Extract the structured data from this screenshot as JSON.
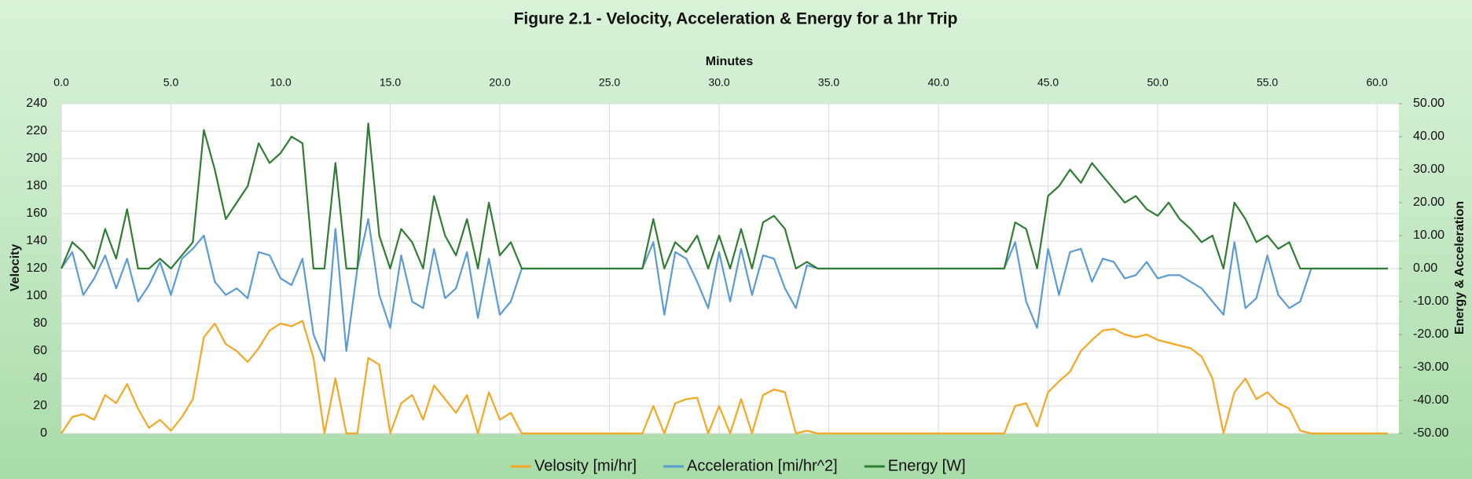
{
  "chart_data": {
    "type": "line",
    "title": "Figure 2.1 - Velocity, Acceleration & Energy for a 1hr Trip",
    "x_label": "Minutes",
    "y_label": "Velocity",
    "y2_label": "Energy & Acceleration",
    "x": [
      0,
      0.5,
      1,
      1.5,
      2,
      2.5,
      3,
      3.5,
      4,
      4.5,
      5,
      5.5,
      6,
      6.5,
      7,
      7.5,
      8,
      8.5,
      9,
      9.5,
      10,
      10.5,
      11,
      11.5,
      12,
      12.5,
      13,
      13.5,
      14,
      14.5,
      15,
      15.5,
      16,
      16.5,
      17,
      17.5,
      18,
      18.5,
      19,
      19.5,
      20,
      20.5,
      21,
      21.5,
      22,
      22.5,
      23,
      23.5,
      24,
      24.5,
      25,
      25.5,
      26,
      26.5,
      27,
      27.5,
      28,
      28.5,
      29,
      29.5,
      30,
      30.5,
      31,
      31.5,
      32,
      32.5,
      33,
      33.5,
      34,
      34.5,
      35,
      35.5,
      36,
      36.5,
      37,
      37.5,
      38,
      38.5,
      39,
      39.5,
      40,
      40.5,
      41,
      41.5,
      42,
      42.5,
      43,
      43.5,
      44,
      44.5,
      45,
      45.5,
      46,
      46.5,
      47,
      47.5,
      48,
      48.5,
      49,
      49.5,
      50,
      50.5,
      51,
      51.5,
      52,
      52.5,
      53,
      53.5,
      54,
      54.5,
      55,
      55.5,
      56,
      56.5,
      57,
      57.5,
      58,
      58.5,
      59,
      59.5,
      60,
      60.5
    ],
    "xlim": [
      0,
      61
    ],
    "xticks": [
      {
        "value": 0,
        "label": "0.0"
      },
      {
        "value": 5,
        "label": "5.0"
      },
      {
        "value": 10,
        "label": "10.0"
      },
      {
        "value": 15,
        "label": "15.0"
      },
      {
        "value": 20,
        "label": "20.0"
      },
      {
        "value": 25,
        "label": "25.0"
      },
      {
        "value": 30,
        "label": "30.0"
      },
      {
        "value": 35,
        "label": "35.0"
      },
      {
        "value": 40,
        "label": "40.0"
      },
      {
        "value": 45,
        "label": "45.0"
      },
      {
        "value": 50,
        "label": "50.0"
      },
      {
        "value": 55,
        "label": "55.0"
      },
      {
        "value": 60,
        "label": "60.0"
      }
    ],
    "ylim": [
      0,
      240
    ],
    "yticks": [
      0,
      20,
      40,
      60,
      80,
      100,
      120,
      140,
      160,
      180,
      200,
      220,
      240
    ],
    "y2lim": [
      -50,
      50
    ],
    "y2ticks": [
      {
        "value": -50,
        "label": "-50.00"
      },
      {
        "value": -40,
        "label": "-40.00"
      },
      {
        "value": -30,
        "label": "-30.00"
      },
      {
        "value": -20,
        "label": "-20.00"
      },
      {
        "value": -10,
        "label": "-10.00"
      },
      {
        "value": 0,
        "label": "0.00"
      },
      {
        "value": 10,
        "label": "10.00"
      },
      {
        "value": 20,
        "label": "20.00"
      },
      {
        "value": 30,
        "label": "30.00"
      },
      {
        "value": 40,
        "label": "40.00"
      },
      {
        "value": 50,
        "label": "50.00"
      }
    ],
    "grid": true,
    "legend": "bottom",
    "series": [
      {
        "name": "Velosity [mi/hr]",
        "color": "#f5a623",
        "axis": "y",
        "values": [
          0,
          12,
          14,
          10,
          28,
          22,
          36,
          18,
          4,
          10,
          2,
          12,
          25,
          70,
          80,
          65,
          60,
          52,
          62,
          75,
          80,
          78,
          82,
          55,
          0,
          40,
          0,
          0,
          55,
          50,
          0,
          22,
          28,
          10,
          35,
          25,
          15,
          28,
          0,
          30,
          10,
          15,
          0,
          0,
          0,
          0,
          0,
          0,
          0,
          0,
          0,
          0,
          0,
          0,
          20,
          0,
          22,
          25,
          26,
          0,
          20,
          0,
          25,
          0,
          28,
          32,
          30,
          0,
          2,
          0,
          0,
          0,
          0,
          0,
          0,
          0,
          0,
          0,
          0,
          0,
          0,
          0,
          0,
          0,
          0,
          0,
          0,
          20,
          22,
          5,
          30,
          38,
          45,
          60,
          68,
          75,
          76,
          72,
          70,
          72,
          68,
          66,
          64,
          62,
          56,
          40,
          0,
          30,
          40,
          25,
          30,
          22,
          18,
          2,
          0,
          0,
          0,
          0,
          0,
          0,
          0,
          0
        ]
      },
      {
        "name": "Acceleration [mi/hr^2]",
        "color": "#5b9bd5",
        "axis": "y2",
        "values": [
          0,
          5,
          -8,
          -3,
          4,
          -6,
          3,
          -10,
          -5,
          2,
          -8,
          3,
          6,
          10,
          -4,
          -8,
          -6,
          -9,
          5,
          4,
          -3,
          -5,
          3,
          -20,
          -28,
          12,
          -25,
          0,
          15,
          -8,
          -18,
          4,
          -10,
          -12,
          6,
          -9,
          -6,
          5,
          -15,
          3,
          -14,
          -10,
          0,
          0,
          0,
          0,
          0,
          0,
          0,
          0,
          0,
          0,
          0,
          0,
          8,
          -14,
          5,
          3,
          -4,
          -12,
          5,
          -10,
          6,
          -8,
          4,
          3,
          -6,
          -12,
          1,
          0,
          0,
          0,
          0,
          0,
          0,
          0,
          0,
          0,
          0,
          0,
          0,
          0,
          0,
          0,
          0,
          0,
          0,
          8,
          -10,
          -18,
          6,
          -8,
          5,
          6,
          -4,
          3,
          2,
          -3,
          -2,
          2,
          -3,
          -2,
          -2,
          -4,
          -6,
          -10,
          -14,
          8,
          -12,
          -9,
          4,
          -8,
          -12,
          -10,
          0,
          0,
          0,
          0,
          0,
          0,
          0,
          0
        ]
      },
      {
        "name": "Energy [W]",
        "color": "#2e7d32",
        "axis": "y2",
        "values": [
          0,
          8,
          5,
          0,
          12,
          3,
          18,
          0,
          0,
          3,
          0,
          4,
          8,
          42,
          30,
          15,
          20,
          25,
          38,
          32,
          35,
          40,
          38,
          0,
          0,
          32,
          0,
          0,
          44,
          10,
          0,
          12,
          8,
          0,
          22,
          10,
          4,
          15,
          0,
          20,
          4,
          8,
          0,
          0,
          0,
          0,
          0,
          0,
          0,
          0,
          0,
          0,
          0,
          0,
          15,
          0,
          8,
          5,
          10,
          0,
          10,
          0,
          12,
          0,
          14,
          16,
          12,
          0,
          2,
          0,
          0,
          0,
          0,
          0,
          0,
          0,
          0,
          0,
          0,
          0,
          0,
          0,
          0,
          0,
          0,
          0,
          0,
          14,
          12,
          0,
          22,
          25,
          30,
          26,
          32,
          28,
          24,
          20,
          22,
          18,
          16,
          20,
          15,
          12,
          8,
          10,
          0,
          20,
          15,
          8,
          10,
          6,
          8,
          0,
          0,
          0,
          0,
          0,
          0,
          0,
          0,
          0
        ]
      }
    ]
  }
}
